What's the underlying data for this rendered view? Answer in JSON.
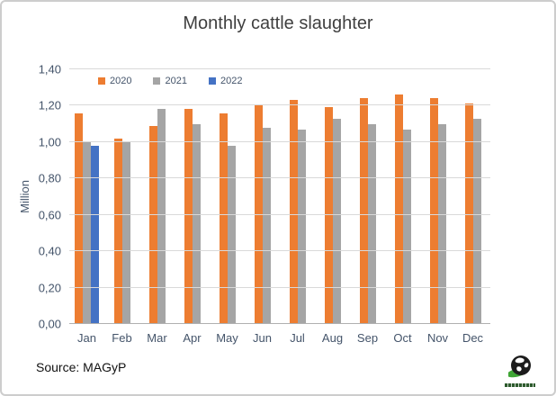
{
  "title": "Monthly cattle slaughter",
  "source_text": "Source: MAGyP",
  "colors": {
    "title": "#3f3f3f",
    "axis_label": "#44546a",
    "gridline": "#d9d9d9",
    "axis_line": "#b0b0b0",
    "source": "#111111",
    "frame_border": "#cdcdcd",
    "logo_green": "#3fa535",
    "logo_dark": "#1c1c1c"
  },
  "logo": {
    "icon": "globe-icon"
  },
  "chart_data": {
    "type": "bar",
    "title": "Monthly cattle slaughter",
    "ylabel": "Million",
    "xlabel": "",
    "ylim": [
      0,
      1.4
    ],
    "y_tick_step": 0.2,
    "y_tick_labels": [
      "0,00",
      "0,20",
      "0,40",
      "0,60",
      "0,80",
      "1,00",
      "1,20",
      "1,40"
    ],
    "decimal_separator": ",",
    "grid": true,
    "legend_position": "inside-top-left",
    "categories": [
      "Jan",
      "Feb",
      "Mar",
      "Apr",
      "May",
      "Jun",
      "Jul",
      "Aug",
      "Sep",
      "Oct",
      "Nov",
      "Dec"
    ],
    "series": [
      {
        "name": "2020",
        "color": "#ed7d31",
        "values": [
          1.16,
          1.02,
          1.09,
          1.18,
          1.16,
          1.2,
          1.23,
          1.19,
          1.24,
          1.26,
          1.24,
          1.21
        ]
      },
      {
        "name": "2021",
        "color": "#a5a5a5",
        "values": [
          1.0,
          1.0,
          1.18,
          1.1,
          0.98,
          1.08,
          1.07,
          1.13,
          1.1,
          1.07,
          1.1,
          1.13
        ]
      },
      {
        "name": "2022",
        "color": "#4472c4",
        "values": [
          0.98,
          null,
          null,
          null,
          null,
          null,
          null,
          null,
          null,
          null,
          null,
          null
        ]
      }
    ]
  }
}
